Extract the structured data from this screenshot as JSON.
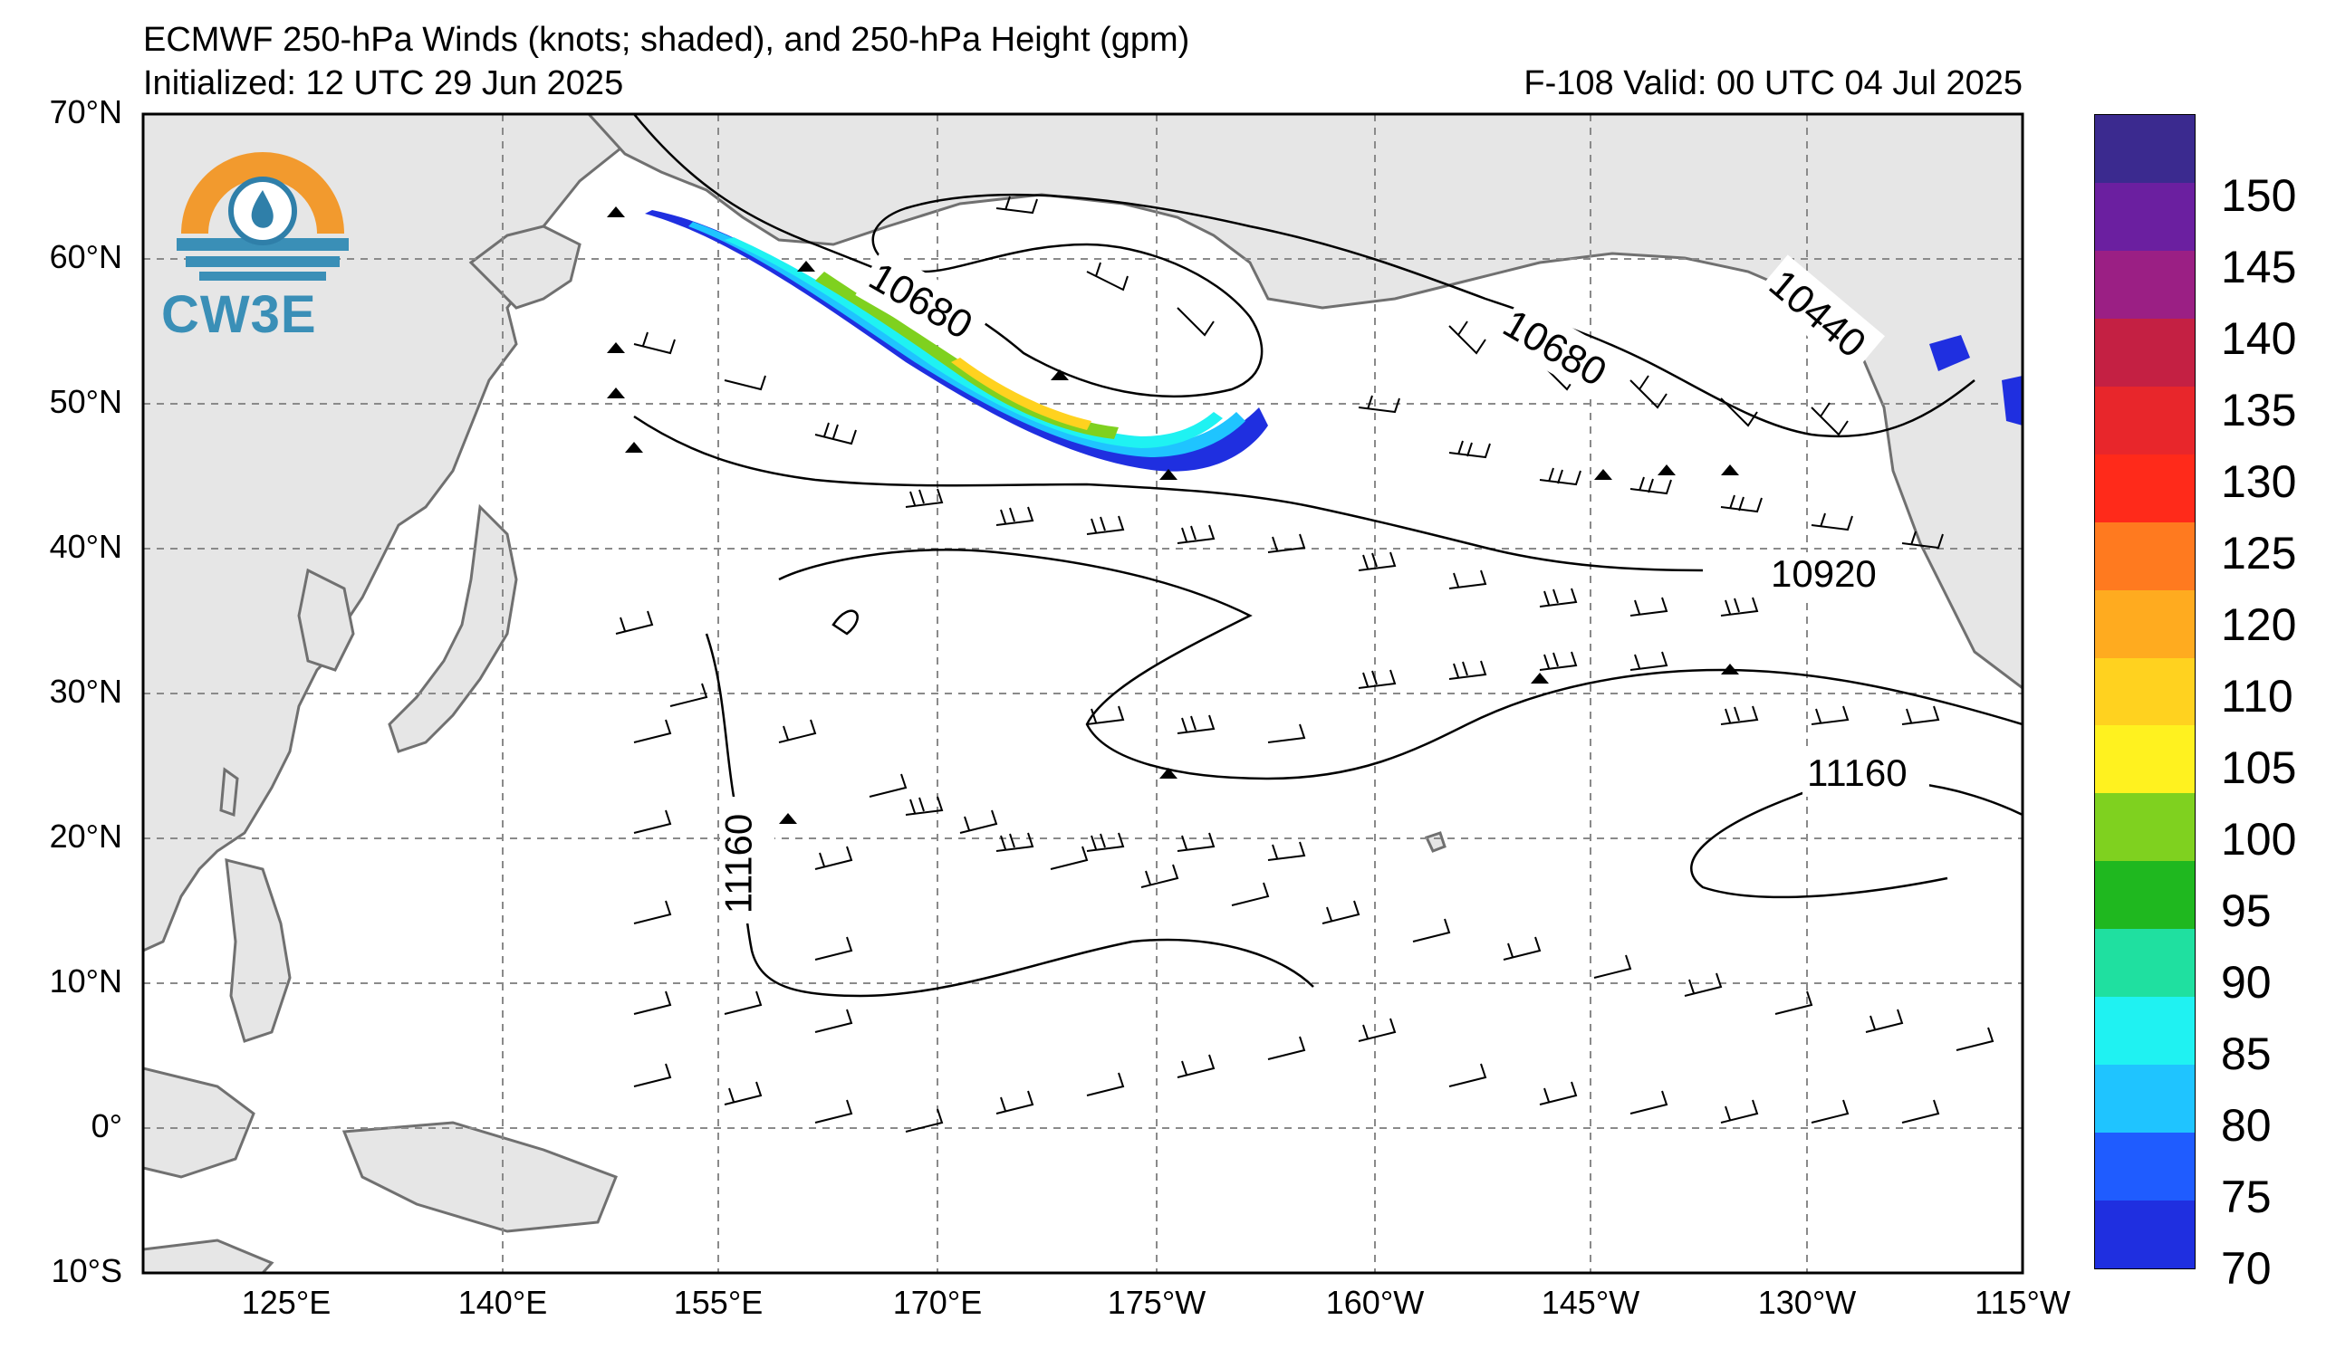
{
  "header": {
    "title": "ECMWF 250-hPa Winds (knots; shaded), and 250-hPa Height (gpm)",
    "initialized": "Initialized: 12 UTC 29 Jun 2025",
    "valid": "F-108  Valid: 00 UTC 04 Jul 2025"
  },
  "logo": {
    "text": "CW3E",
    "colors": {
      "sun": "#f29a2e",
      "water": "#3a8fb7",
      "drop": "#2f7fa9"
    }
  },
  "axes": {
    "lat_labels": [
      "70°N",
      "60°N",
      "50°N",
      "40°N",
      "30°N",
      "20°N",
      "10°N",
      "0°",
      "10°S"
    ],
    "lon_labels": [
      "125°E",
      "140°E",
      "155°E",
      "170°E",
      "175°W",
      "160°W",
      "145°W",
      "130°W",
      "115°W"
    ]
  },
  "contour_labels": [
    {
      "text": "10680"
    },
    {
      "text": "10680"
    },
    {
      "text": "10440"
    },
    {
      "text": "10920"
    },
    {
      "text": "11160"
    },
    {
      "text": "11160"
    }
  ],
  "colorbar": {
    "labels": [
      "150",
      "145",
      "140",
      "135",
      "130",
      "125",
      "120",
      "110",
      "105",
      "100",
      "95",
      "90",
      "85",
      "80",
      "75",
      "70"
    ],
    "colors": [
      "#3b2a8f",
      "#6b1fa0",
      "#9b1f84",
      "#c42043",
      "#e8262b",
      "#ff2a1a",
      "#ff7a1f",
      "#ffab1f",
      "#ffd21f",
      "#fff21f",
      "#7fd11f",
      "#1fb81f",
      "#1fe0a0",
      "#1ff2f2",
      "#1fc4ff",
      "#1f5cff",
      "#1f2fe0"
    ]
  },
  "colors": {
    "land": "#e6e6e6",
    "coast": "#707070",
    "grid": "#8a8a8a"
  }
}
